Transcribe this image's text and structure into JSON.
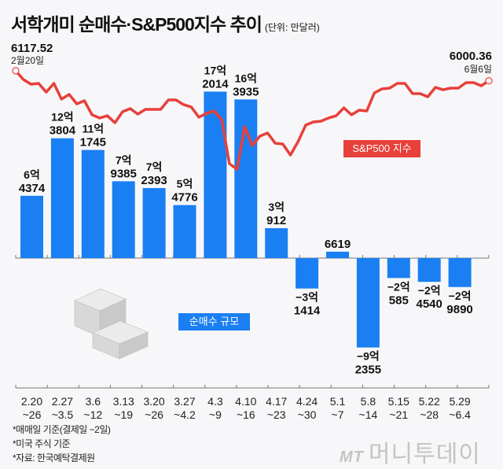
{
  "chart_data": {
    "type": "bar+line",
    "title": "서학개미 순매수·S&P500지수 추이",
    "unit_note": "(단위: 만달러)",
    "categories": [
      [
        "2.20",
        "~26"
      ],
      [
        "2.27",
        "~3.5"
      ],
      [
        "3.6",
        "~12"
      ],
      [
        "3.13",
        "~19"
      ],
      [
        "3.20",
        "~26"
      ],
      [
        "3.27",
        "~4.2"
      ],
      [
        "4.3",
        "~9"
      ],
      [
        "4.10",
        "~16"
      ],
      [
        "4.17",
        "~23"
      ],
      [
        "4.24",
        "~30"
      ],
      [
        "5.1",
        "~7"
      ],
      [
        "5.8",
        "~14"
      ],
      [
        "5.15",
        "~21"
      ],
      [
        "5.22",
        "~28"
      ],
      [
        "5.29",
        "~6.4"
      ]
    ],
    "bar_series": {
      "name": "순매수 규모",
      "values": [
        64374,
        123804,
        111745,
        79385,
        72393,
        54776,
        172014,
        163935,
        30912,
        -31414,
        6619,
        -92355,
        -20585,
        -24540,
        -29890
      ],
      "labels": [
        [
          "6억",
          "4374"
        ],
        [
          "12억",
          "3804"
        ],
        [
          "11억",
          "1745"
        ],
        [
          "7억",
          "9385"
        ],
        [
          "7억",
          "2393"
        ],
        [
          "5억",
          "4776"
        ],
        [
          "17억",
          "2014"
        ],
        [
          "16억",
          "3935"
        ],
        [
          "3억",
          "912"
        ],
        [
          "−3억",
          "1414"
        ],
        [
          "",
          "6619"
        ],
        [
          "−9억",
          "2355"
        ],
        [
          "−2억",
          "585"
        ],
        [
          "−2억",
          "4540"
        ],
        [
          "−2억",
          "9890"
        ]
      ],
      "color": "#1a7ff2"
    },
    "line_series": {
      "name": "S&P500 지수",
      "color": "#e8403a",
      "values": [
        6117.52,
        6015,
        5959,
        5969,
        5866,
        5969,
        5783,
        5839,
        5727,
        5764,
        5598,
        5560,
        5587,
        5504,
        5634,
        5671,
        5606,
        5662,
        5662,
        5662,
        5773,
        5773,
        5718,
        5690,
        5569,
        5615,
        5643,
        5541,
        5020,
        4955,
        5457,
        5234,
        5346,
        5383,
        5262,
        5253,
        5122,
        5281,
        5476,
        5513,
        5522,
        5560,
        5587,
        5680,
        5598,
        5653,
        5643,
        5857,
        5904,
        5913,
        5969,
        5969,
        5848,
        5848,
        5811,
        5922,
        5894,
        5913,
        5913,
        5978,
        5978,
        5941,
        6000.36
      ],
      "start_label": {
        "value": "6117.52",
        "date": "2월20일"
      },
      "end_label": {
        "value": "6000.36",
        "date": "6월6일"
      }
    }
  },
  "notes": [
    "*매매일 기준(결제일 −2일)",
    "*미국 주식 기준",
    "*자료: 한국예탁결제원"
  ],
  "logo": {
    "mark": "MT",
    "text": "머니투데이"
  }
}
